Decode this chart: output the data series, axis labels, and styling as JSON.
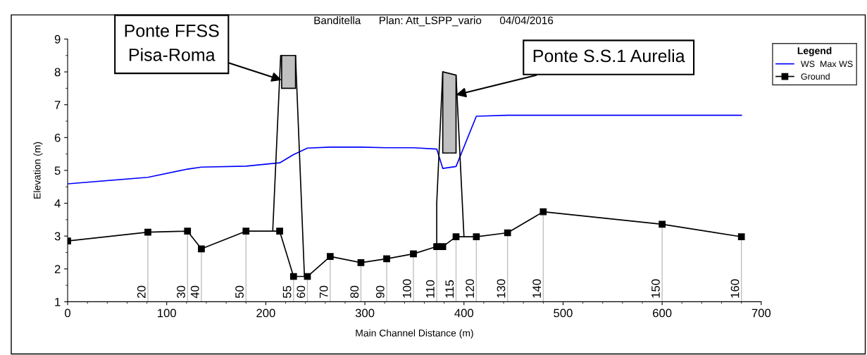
{
  "chart_data": {
    "type": "line",
    "title": "Banditella      Plan: Att_LSPP_vario      04/04/2016",
    "xlabel": "Main Channel Distance (m)",
    "ylabel": "Elevation (m)",
    "legend_title": "Legend",
    "xlim": [
      0,
      700
    ],
    "xticks": [
      0,
      100,
      200,
      300,
      400,
      500,
      600,
      700
    ],
    "ylim": [
      1,
      9
    ],
    "yticks": [
      1,
      2,
      3,
      4,
      5,
      6,
      7,
      8,
      9
    ],
    "grid": false,
    "legend": "top right",
    "series": [
      {
        "name": "WS  Max WS",
        "color": "#0000ff",
        "marker": "none",
        "x": [
          0,
          81,
          121,
          135,
          180,
          214,
          228,
          242,
          265,
          296,
          322,
          349,
          372.5,
          378.6,
          392,
          412.5,
          444,
          480,
          600,
          680
        ],
        "values": [
          4.59,
          4.79,
          5.04,
          5.1,
          5.13,
          5.23,
          5.48,
          5.68,
          5.71,
          5.71,
          5.69,
          5.69,
          5.65,
          5.06,
          5.12,
          6.65,
          6.68,
          6.68,
          6.68,
          6.68
        ]
      },
      {
        "name": "Ground",
        "color": "#000000",
        "marker": "square",
        "x": [
          0,
          81,
          121,
          135,
          180,
          214,
          228,
          242,
          265,
          296,
          322,
          349,
          372.5,
          378.6,
          392,
          412.5,
          444,
          480,
          600,
          680
        ],
        "values": [
          2.85,
          3.12,
          3.15,
          2.61,
          3.15,
          3.15,
          1.77,
          1.77,
          2.38,
          2.19,
          2.31,
          2.46,
          2.68,
          2.68,
          2.98,
          2.98,
          3.1,
          3.74,
          3.36,
          2.98
        ]
      },
      {
        "color": "#000000",
        "marker": "none",
        "x": [
          207,
          215,
          230,
          239
        ],
        "values": [
          3.15,
          8.5,
          8.5,
          1.77
        ]
      },
      {
        "color": "#000000",
        "marker": "none",
        "x": [
          372.5,
          372.5,
          378.6,
          392,
          400
        ],
        "values": [
          2.68,
          4.0,
          8.0,
          7.9,
          2.98
        ]
      },
      {
        "type": "area",
        "color": "#c0c0c0",
        "x": [
          216,
          216,
          230,
          230
        ],
        "values": [
          7.5,
          8.5,
          8.5,
          7.5
        ]
      },
      {
        "type": "area",
        "color": "#c0c0c0",
        "x": [
          378.6,
          378.6,
          392,
          392
        ],
        "values": [
          5.53,
          8.0,
          7.9,
          5.53
        ]
      }
    ],
    "annotations": [
      {
        "text": "Ponte FFSS\nPisa-Roma",
        "x": 216,
        "y": 7.75
      },
      {
        "text": "Ponte S.S.1 Aurelia",
        "x": 392,
        "y": 7.3
      },
      {
        "text": "20",
        "x": 81,
        "y": 3.12
      },
      {
        "text": "30",
        "x": 121,
        "y": 3.15
      },
      {
        "text": "40",
        "x": 135,
        "y": 2.61
      },
      {
        "text": "50",
        "x": 180,
        "y": 3.15
      },
      {
        "text": "55",
        "x": 228,
        "y": 1.77
      },
      {
        "text": "60",
        "x": 242,
        "y": 1.77
      },
      {
        "text": "70",
        "x": 265,
        "y": 2.38
      },
      {
        "text": "80",
        "x": 296,
        "y": 2.19
      },
      {
        "text": "90",
        "x": 322,
        "y": 2.31
      },
      {
        "text": "100",
        "x": 349,
        "y": 2.46
      },
      {
        "text": "110",
        "x": 372.5,
        "y": 2.68
      },
      {
        "text": "115",
        "x": 392,
        "y": 2.98
      },
      {
        "text": "120",
        "x": 412.5,
        "y": 2.98
      },
      {
        "text": "130",
        "x": 444,
        "y": 3.1
      },
      {
        "text": "140",
        "x": 480,
        "y": 3.74
      },
      {
        "text": "150",
        "x": 600,
        "y": 3.36
      },
      {
        "text": "160",
        "x": 680,
        "y": 2.98
      }
    ]
  }
}
